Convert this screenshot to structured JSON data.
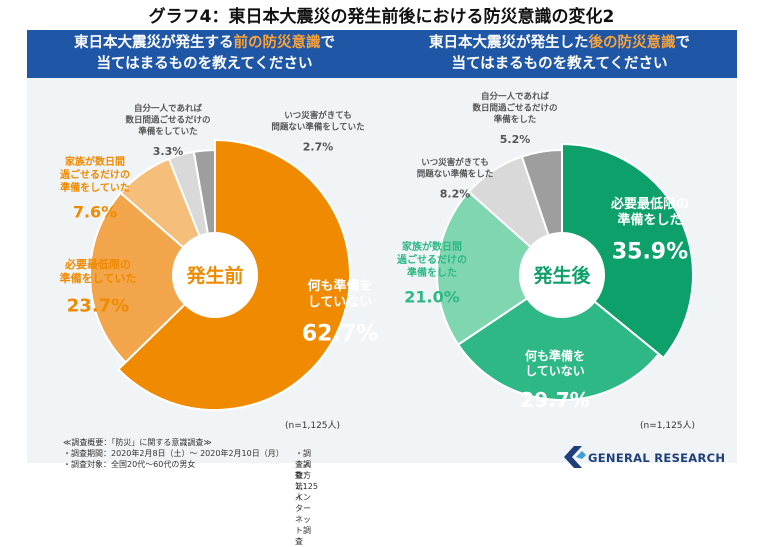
{
  "title": "グラフ4：東日本大震災の発生前後における防災意識の変化2",
  "sample_size_label": "(n=1,125人)",
  "headers": {
    "before": {
      "line1_a": "東日本大震災が発生する",
      "line1_em": "前の防災意識",
      "line1_b": "で",
      "line2": "当てはまるものを教えてください"
    },
    "after": {
      "line1_a": "東日本大震災が発生した",
      "line1_em": "後の防災意識",
      "line1_b": "で",
      "line2": "当てはまるものを教えてください"
    }
  },
  "chart_data": [
    {
      "type": "pie",
      "title": "発生前",
      "unit": "%",
      "slices": [
        {
          "label": "何も準備をしていない",
          "value": 62.7,
          "color": "#f08a00"
        },
        {
          "label": "必要最低限の準備をしていた",
          "value": 23.7,
          "color": "#f2a54a"
        },
        {
          "label": "家族が数日間過ごせるだけの準備をしていた",
          "value": 7.6,
          "color": "#f5be7a"
        },
        {
          "label": "自分一人であれば数日間過ごせるだけの準備をしていた",
          "value": 3.3,
          "color": "#d9d9d9"
        },
        {
          "label": "いつ災害がきても問題ない準備をしていた",
          "value": 2.7,
          "color": "#9e9e9e"
        }
      ]
    },
    {
      "type": "pie",
      "title": "発生後",
      "unit": "%",
      "slices": [
        {
          "label": "必要最低限の準備をした",
          "value": 35.9,
          "color": "#0da06a"
        },
        {
          "label": "何も準備をしていない",
          "value": 29.7,
          "color": "#2db886"
        },
        {
          "label": "家族が数日間過ごせるだけの準備をした",
          "value": 21.0,
          "color": "#7fd6b0"
        },
        {
          "label": "いつ災害がきても問題ない準備をした",
          "value": 8.2,
          "color": "#d9d9d9"
        },
        {
          "label": "自分一人であれば数日間過ごせるだけの準備をした",
          "value": 5.2,
          "color": "#9e9e9e"
        }
      ]
    }
  ],
  "footer": {
    "heading": "≪調査概要：「防災」に関する意識調査≫",
    "period": "・調査期間：2020年2月8日（土）～ 2020年2月10日（月）",
    "target": "・調査対象：全国20代～60代の男女",
    "count": "・調査人数：1,125人",
    "method": "・調査方法：インターネット調査"
  },
  "brand": {
    "name": "GENERAL RESEARCH",
    "accent": "#1f3f7a"
  }
}
